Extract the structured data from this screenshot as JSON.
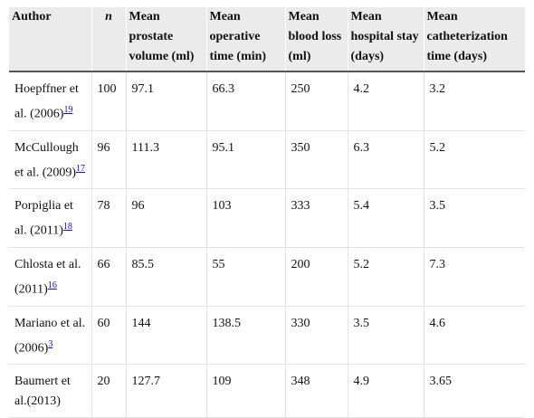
{
  "table": {
    "header": [
      "Author",
      "n",
      "Mean prostate volume (ml)",
      "Mean operative time (min)",
      "Mean blood loss (ml)",
      "Mean hospital stay (days)",
      "Mean catheterization time (days)"
    ],
    "rows": [
      {
        "author": "Hoepffner et al. (2006)",
        "ref": "19",
        "cells": [
          "100",
          "97.1",
          "66.3",
          "250",
          "4.2",
          "3.2"
        ]
      },
      {
        "author": "McCullough et al. (2009)",
        "ref": "17",
        "cells": [
          "96",
          "111.3",
          "95.1",
          "350",
          "6.3",
          "5.2"
        ]
      },
      {
        "author": "Porpiglia et al. (2011)",
        "ref": "18",
        "cells": [
          "78",
          "96",
          "103",
          "333",
          "5.4",
          "3.5"
        ]
      },
      {
        "author": "Chlosta et al.(2011)",
        "ref": "16",
        "cells": [
          "66",
          "85.5",
          "55",
          "200",
          "5.2",
          "7.3"
        ]
      },
      {
        "author": "Mariano et al.(2006)",
        "ref": "3",
        "cells": [
          "60",
          "144",
          "138.5",
          "330",
          "3.5",
          "4.6"
        ]
      },
      {
        "author": "Baumert et al.(2013)",
        "cells": [
          "20",
          "127.7",
          "109",
          "348",
          "4.9",
          "3.65"
        ]
      }
    ]
  }
}
